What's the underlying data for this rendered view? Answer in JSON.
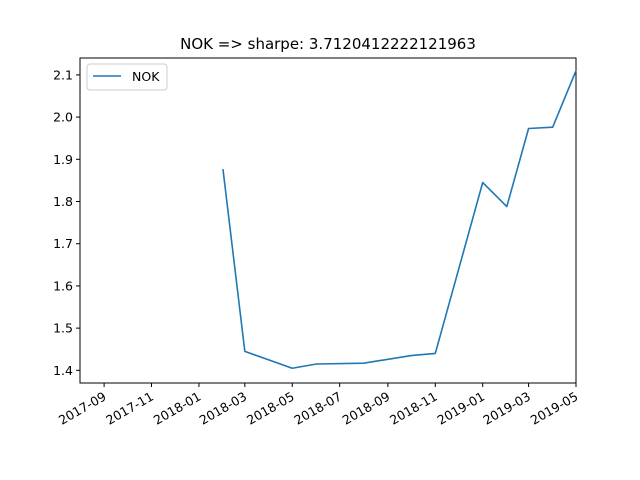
{
  "chart_data": {
    "type": "line",
    "title": "NOK => sharpe: 3.7120412222121963",
    "xlabel": "",
    "ylabel": "",
    "x_ticks": [
      "2017-09",
      "2017-11",
      "2018-01",
      "2018-03",
      "2018-05",
      "2018-07",
      "2018-09",
      "2018-11",
      "2019-01",
      "2019-03",
      "2019-05"
    ],
    "y_ticks": [
      1.4,
      1.5,
      1.6,
      1.7,
      1.8,
      1.9,
      2.0,
      2.1
    ],
    "y_tick_labels": [
      "1.4",
      "1.5",
      "1.6",
      "1.7",
      "1.8",
      "1.9",
      "2.0",
      "2.1"
    ],
    "xlim": [
      "2017-08-01",
      "2019-05-01"
    ],
    "ylim": [
      1.37,
      2.14
    ],
    "legend": "upper-left",
    "grid": false,
    "colors": {
      "series": "#1f77b4",
      "axis": "#000000",
      "background": "#ffffff"
    },
    "series": [
      {
        "name": "NOK",
        "points": [
          {
            "x": "2018-02-01",
            "y": 1.875
          },
          {
            "x": "2018-03-01",
            "y": 1.445
          },
          {
            "x": "2018-05-01",
            "y": 1.405
          },
          {
            "x": "2018-06-01",
            "y": 1.415
          },
          {
            "x": "2018-08-01",
            "y": 1.417
          },
          {
            "x": "2018-10-01",
            "y": 1.435
          },
          {
            "x": "2018-11-01",
            "y": 1.44
          },
          {
            "x": "2019-01-01",
            "y": 1.845
          },
          {
            "x": "2019-02-01",
            "y": 1.788
          },
          {
            "x": "2019-03-01",
            "y": 1.973
          },
          {
            "x": "2019-04-01",
            "y": 1.976
          },
          {
            "x": "2019-05-01",
            "y": 2.11
          }
        ]
      }
    ]
  }
}
